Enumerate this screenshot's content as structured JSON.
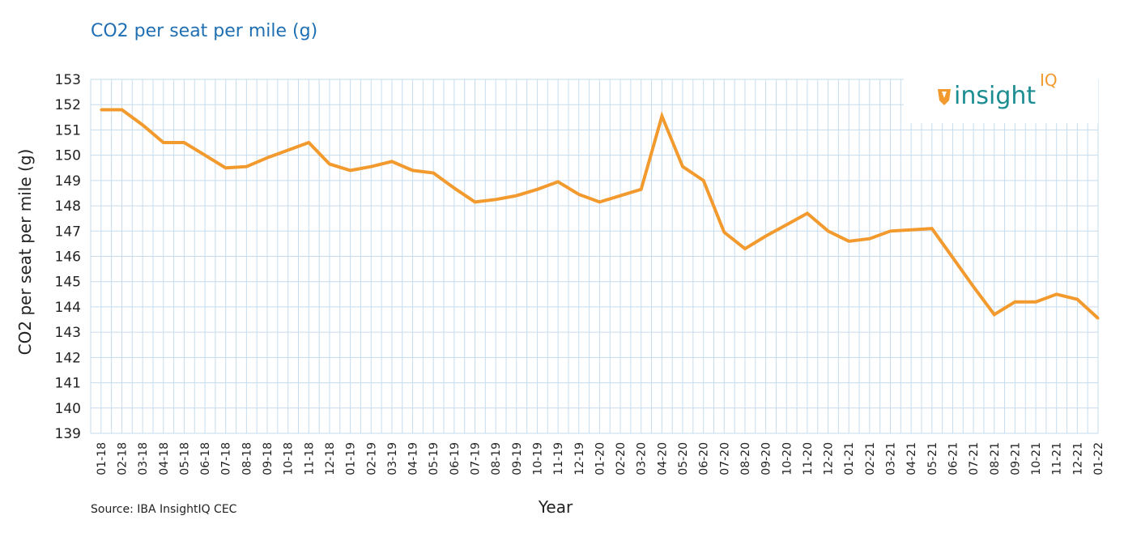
{
  "chart_data": {
    "type": "line",
    "title": "CO2 per seat per mile (g)",
    "xlabel": "Year",
    "ylabel": "CO2 per seat per mile (g)",
    "ylim": [
      139,
      153
    ],
    "yticks": [
      139,
      140,
      141,
      142,
      143,
      144,
      145,
      146,
      147,
      148,
      149,
      150,
      151,
      152,
      153
    ],
    "grid": true,
    "source": "Source: IBA InsightIQ CEC",
    "colors": {
      "line": "#f29a2e",
      "grid": "#c6dcee",
      "title": "#1f6fb2",
      "logo": "#1c8d92"
    },
    "categories": [
      "01-18",
      "02-18",
      "03-18",
      "04-18",
      "05-18",
      "06-18",
      "07-18",
      "08-18",
      "09-18",
      "10-18",
      "11-18",
      "12-18",
      "01-19",
      "02-19",
      "03-19",
      "04-19",
      "05-19",
      "06-19",
      "07-19",
      "08-19",
      "09-19",
      "10-19",
      "11-19",
      "12-19",
      "01-20",
      "02-20",
      "03-20",
      "04-20",
      "05-20",
      "06-20",
      "07-20",
      "08-20",
      "09-20",
      "10-20",
      "11-20",
      "12-20",
      "01-21",
      "02-21",
      "03-21",
      "04-21",
      "05-21",
      "06-21",
      "07-21",
      "08-21",
      "09-21",
      "10-21",
      "11-21",
      "12-21",
      "01-22"
    ],
    "series": [
      {
        "values": [
          151.8,
          151.8,
          151.2,
          150.5,
          150.5,
          150.0,
          149.5,
          149.55,
          149.9,
          150.2,
          150.5,
          149.65,
          149.4,
          149.55,
          149.75,
          149.4,
          149.3,
          148.7,
          148.15,
          148.25,
          148.4,
          148.65,
          148.95,
          148.45,
          148.15,
          148.4,
          148.65,
          151.55,
          149.55,
          149.0,
          146.95,
          146.3,
          146.8,
          147.25,
          147.7,
          147.0,
          146.6,
          146.7,
          147.0,
          147.05,
          147.1,
          145.95,
          144.8,
          143.7,
          144.2,
          144.2,
          144.5,
          144.3,
          143.55
        ]
      }
    ]
  },
  "logo": {
    "word": "insight",
    "suffix": "IQ"
  }
}
